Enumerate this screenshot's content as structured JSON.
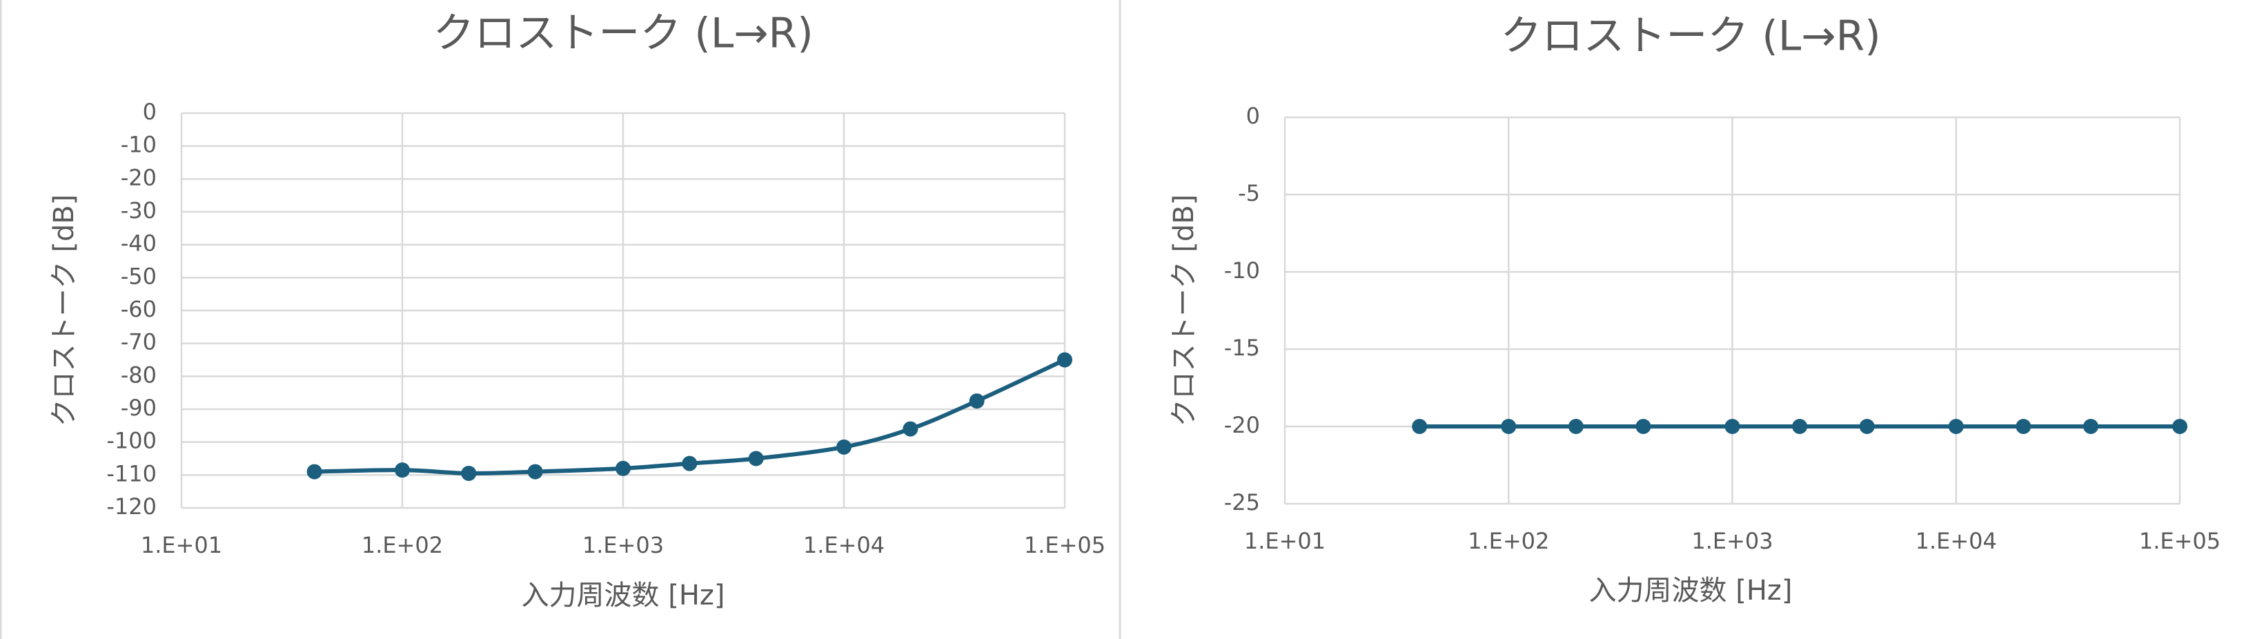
{
  "chart_data": [
    {
      "type": "line",
      "title": "クロストーク (L→R)",
      "x_label": "入力周波数 [Hz]",
      "y_label": "クロストーク [dB]",
      "xscale": "log",
      "grid": true,
      "x": [
        40,
        100,
        200,
        400,
        1000,
        2000,
        4000,
        10000,
        20000,
        40000,
        100000
      ],
      "series": [
        {
          "name": "クロストーク",
          "color": "#1b5e7e",
          "values": [
            -109,
            -108.5,
            -109.5,
            -109,
            -108,
            -106.5,
            -105,
            -101.5,
            -96,
            -87.5,
            -75
          ]
        }
      ],
      "xlim": [
        10,
        100000
      ],
      "xticks": [
        {
          "value": 10,
          "label": "1.E+01"
        },
        {
          "value": 100,
          "label": "1.E+02"
        },
        {
          "value": 1000,
          "label": "1.E+03"
        },
        {
          "value": 10000,
          "label": "1.E+04"
        },
        {
          "value": 100000,
          "label": "1.E+05"
        }
      ],
      "ylim": [
        -120,
        0
      ],
      "yticks": [
        0,
        -10,
        -20,
        -30,
        -40,
        -50,
        -60,
        -70,
        -80,
        -90,
        -100,
        -110,
        -120
      ]
    },
    {
      "type": "line",
      "title": "クロストーク (L→R)",
      "x_label": "入力周波数 [Hz]",
      "y_label": "クロストーク [dB]",
      "xscale": "log",
      "grid": true,
      "x": [
        40,
        100,
        200,
        400,
        1000,
        2000,
        4000,
        10000,
        20000,
        40000,
        100000
      ],
      "series": [
        {
          "name": "クロストーク",
          "color": "#1b5e7e",
          "values": [
            -20,
            -20,
            -20,
            -20,
            -20,
            -20,
            -20,
            -20,
            -20,
            -20,
            -20
          ]
        }
      ],
      "xlim": [
        10,
        100000
      ],
      "xticks": [
        {
          "value": 10,
          "label": "1.E+01"
        },
        {
          "value": 100,
          "label": "1.E+02"
        },
        {
          "value": 1000,
          "label": "1.E+03"
        },
        {
          "value": 10000,
          "label": "1.E+04"
        },
        {
          "value": 100000,
          "label": "1.E+05"
        }
      ],
      "ylim": [
        -25,
        0
      ],
      "yticks": [
        0,
        -5,
        -10,
        -15,
        -20,
        -25
      ]
    }
  ]
}
